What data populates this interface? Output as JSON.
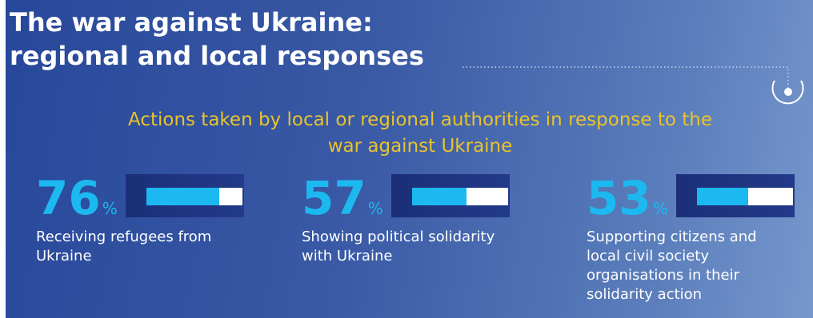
{
  "chart_data": {
    "type": "bar",
    "title": [
      "The war against Ukraine:",
      "regional and local responses"
    ],
    "subtitle": "Actions taken by local or regional authorities in response to the war against Ukraine",
    "categories": [
      "Receiving refugees from Ukraine",
      "Showing political solidarity with Ukraine",
      "Supporting citizens and local civil society organisations in their solidarity action"
    ],
    "values": [
      76,
      57,
      53
    ],
    "unit": "%",
    "xlim": [
      0,
      100
    ],
    "color": "#1cb9f0"
  }
}
